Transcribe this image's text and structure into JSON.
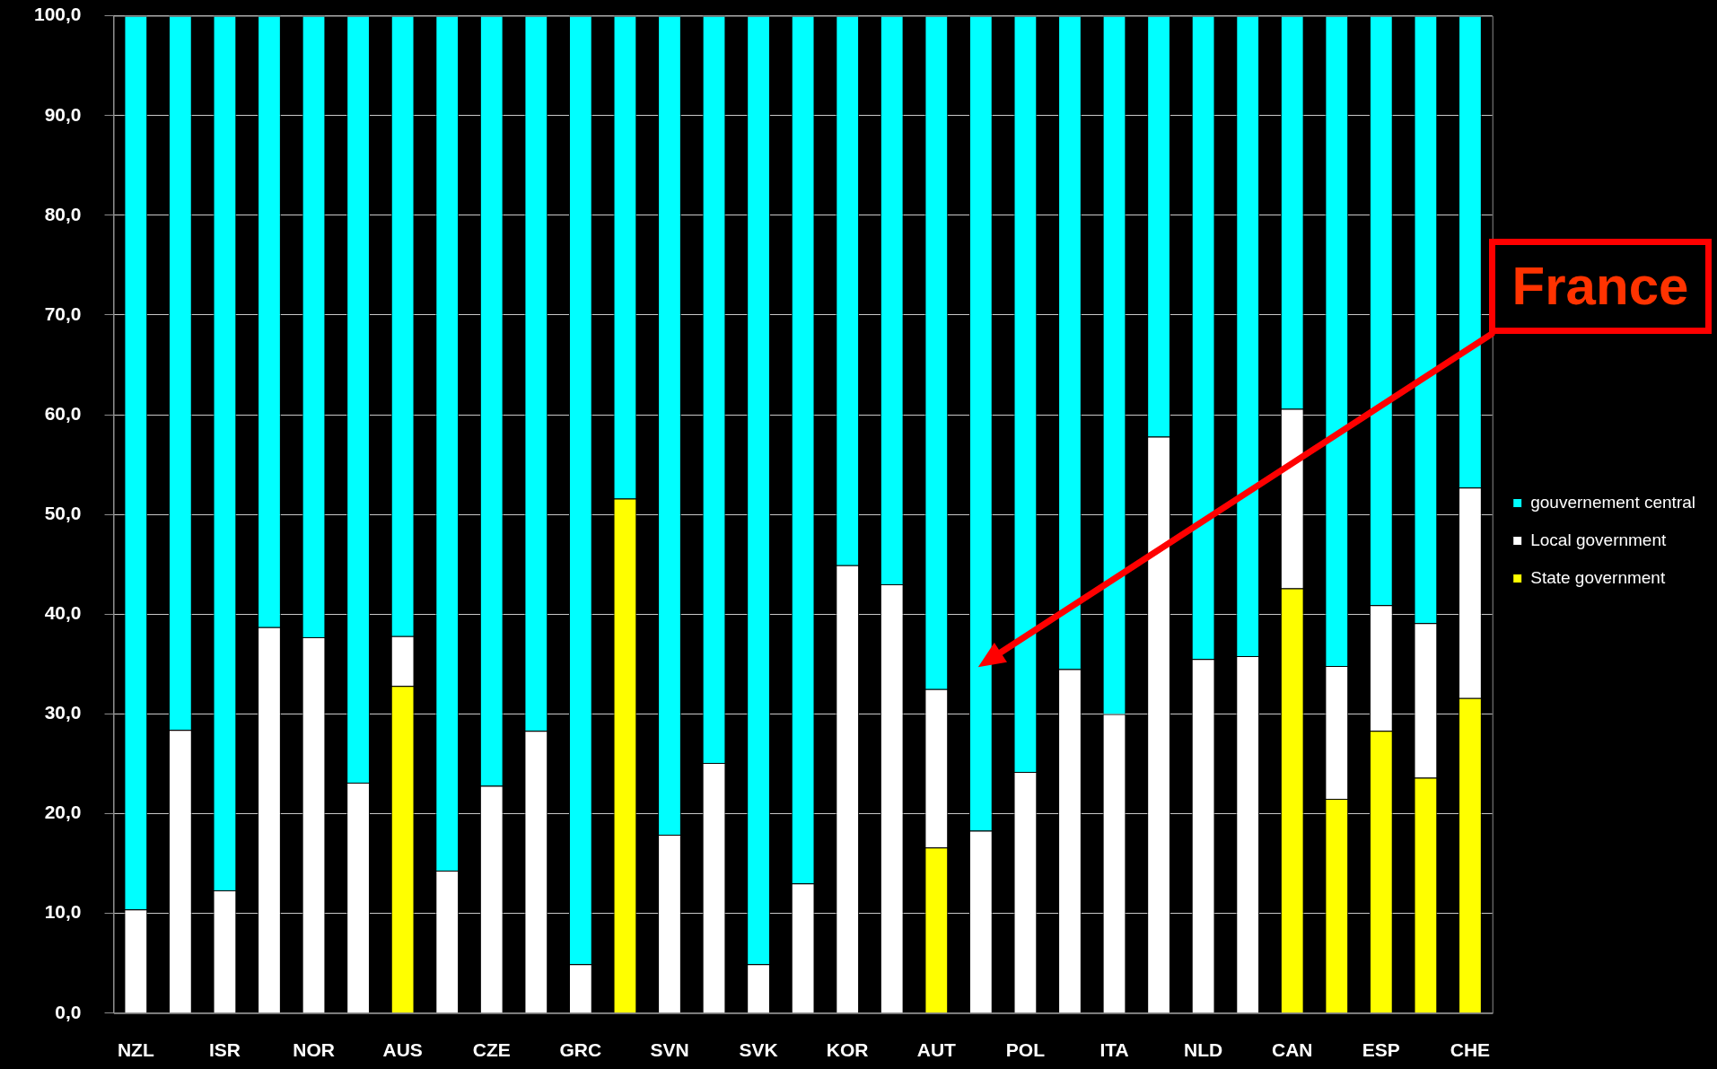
{
  "chart_data": {
    "type": "bar",
    "stacked": true,
    "categories": [
      "NZL",
      null,
      "ISR",
      null,
      "NOR",
      null,
      "AUS",
      null,
      "CZE",
      null,
      "GRC",
      null,
      "SVN",
      null,
      "SVK",
      null,
      "KOR",
      null,
      "AUT",
      null,
      "POL",
      null,
      "ITA",
      null,
      "NLD",
      null,
      "CAN",
      null,
      "ESP",
      null,
      "CHE"
    ],
    "series": [
      {
        "name": "State government",
        "color": "#ffff00",
        "values": [
          null,
          null,
          null,
          null,
          null,
          null,
          32.8,
          null,
          null,
          null,
          null,
          51.6,
          null,
          null,
          null,
          null,
          null,
          null,
          16.6,
          null,
          null,
          null,
          null,
          null,
          null,
          null,
          42.6,
          21.5,
          28.3,
          23.6,
          31.6
        ]
      },
      {
        "name": "Local government",
        "color": "#ffffff",
        "values": [
          10.4,
          28.4,
          12.3,
          38.7,
          37.7,
          23.1,
          5.0,
          14.3,
          22.8,
          28.3,
          4.9,
          null,
          17.9,
          25.1,
          4.9,
          13.0,
          44.9,
          43.0,
          15.9,
          18.3,
          24.2,
          34.5,
          30.0,
          57.8,
          35.5,
          35.8,
          18.0,
          13.3,
          12.6,
          15.5,
          21.1
        ]
      },
      {
        "name": "gouvernement central",
        "color": "#00ffff",
        "values": [
          89.6,
          71.6,
          87.7,
          61.3,
          62.3,
          76.9,
          62.2,
          85.7,
          77.2,
          71.7,
          95.1,
          48.4,
          82.1,
          74.9,
          95.1,
          87.0,
          55.1,
          57.0,
          67.5,
          81.7,
          75.8,
          65.5,
          70.0,
          42.2,
          64.5,
          64.2,
          39.4,
          65.2,
          59.1,
          60.9,
          47.3
        ]
      }
    ],
    "ylim": [
      0,
      100
    ],
    "yticks": [
      {
        "value": 0,
        "label": "0,0"
      },
      {
        "value": 10,
        "label": "10,0"
      },
      {
        "value": 20,
        "label": "20,0"
      },
      {
        "value": 30,
        "label": "30,0"
      },
      {
        "value": 40,
        "label": "40,0"
      },
      {
        "value": 50,
        "label": "50,0"
      },
      {
        "value": 60,
        "label": "60,0"
      },
      {
        "value": 70,
        "label": "70,0"
      },
      {
        "value": 80,
        "label": "80,0"
      },
      {
        "value": 90,
        "label": "90,0"
      },
      {
        "value": 100,
        "label": "100,0"
      }
    ],
    "grid": "y",
    "legend": "right",
    "annotations": [
      "France"
    ]
  }
}
